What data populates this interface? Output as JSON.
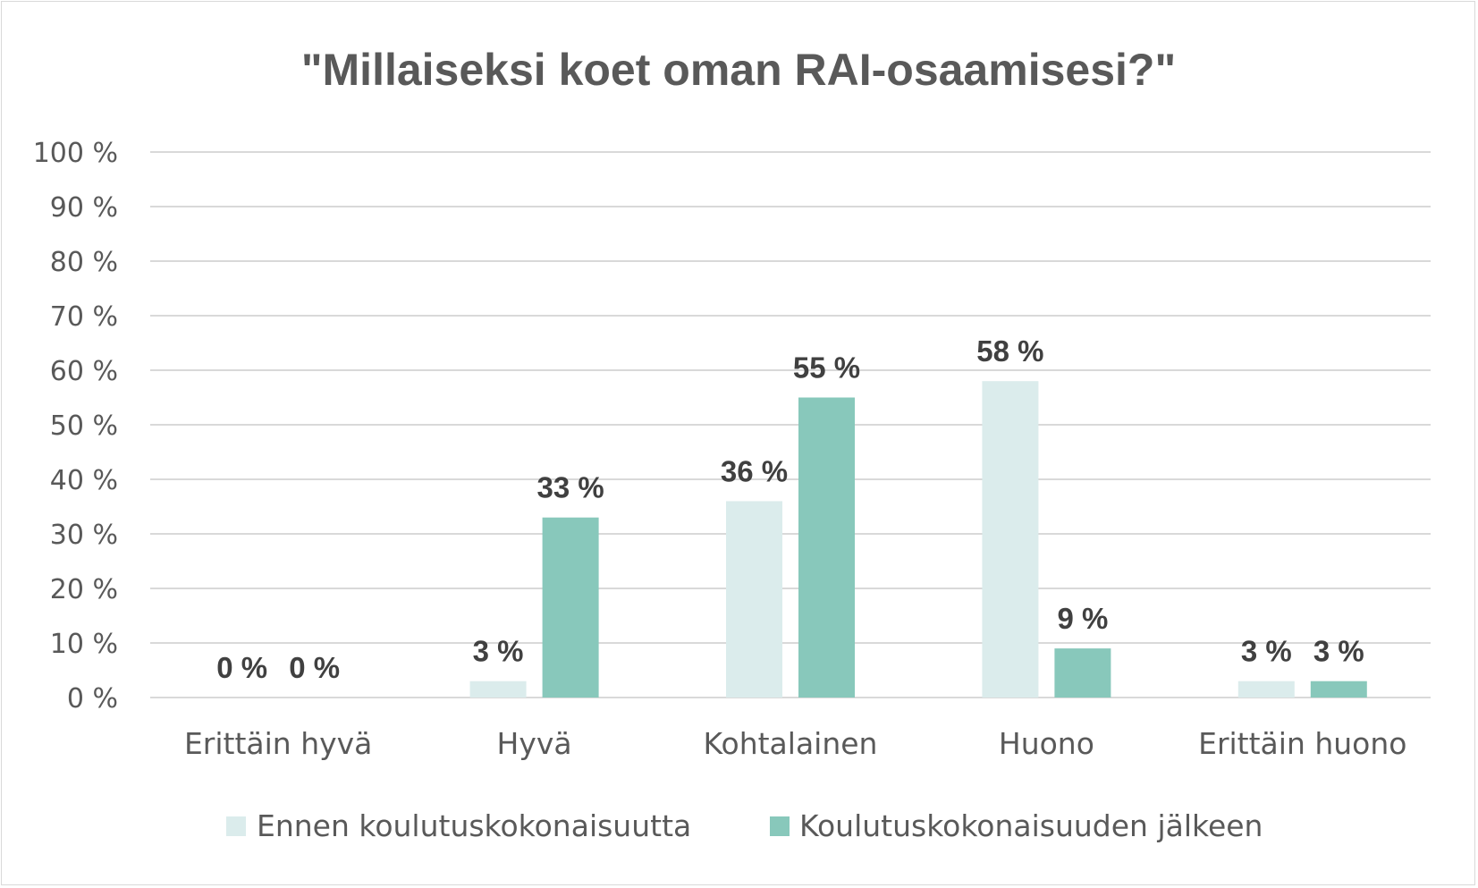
{
  "chart_data": {
    "type": "bar",
    "title": "\"Millaiseksi koet oman RAI-osaamisesi?\"",
    "categories": [
      "Erittäin hyvä",
      "Hyvä",
      "Kohtalainen",
      "Huono",
      "Erittäin huono"
    ],
    "series": [
      {
        "name": "Ennen koulutuskokonaisuutta",
        "values": [
          0,
          3,
          36,
          58,
          3
        ],
        "labels": [
          "0 %",
          "3 %",
          "36 %",
          "58 %",
          "3 %"
        ],
        "color": "#dbecec"
      },
      {
        "name": "Koulutuskokonaisuuden jälkeen",
        "values": [
          0,
          33,
          55,
          9,
          3
        ],
        "labels": [
          "0 %",
          "33 %",
          "55 %",
          "9 %",
          "3 %"
        ],
        "color": "#88c8bb"
      }
    ],
    "ylim": [
      0,
      100
    ],
    "yticks": [
      "0 %",
      "10 %",
      "20 %",
      "30 %",
      "40 %",
      "50 %",
      "60 %",
      "70 %",
      "80 %",
      "90 %",
      "100 %"
    ],
    "ytick_values": [
      0,
      10,
      20,
      30,
      40,
      50,
      60,
      70,
      80,
      90,
      100
    ],
    "grid": true,
    "legend": "bottom",
    "colors": {
      "title": "#595959",
      "axis_text": "#595959",
      "data_label": "#404040",
      "grid": "#d9d9d9"
    }
  }
}
